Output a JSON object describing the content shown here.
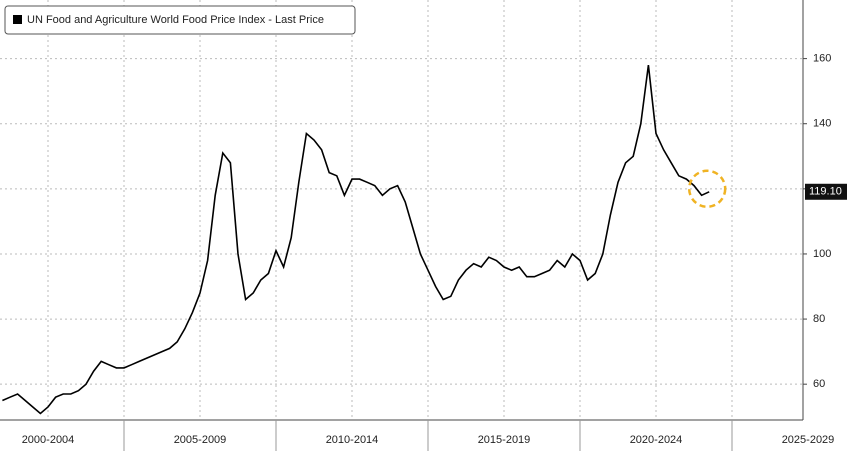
{
  "chart_data": {
    "type": "line",
    "legend": "UN Food and Agriculture World Food Price Index - Last Price",
    "periods": [
      "2000-2004",
      "2005-2009",
      "2010-2014",
      "2015-2019",
      "2020-2024",
      "2025-2029"
    ],
    "series": [
      {
        "name": "UN Food and Agriculture World Food Price Index - Last Price",
        "color": "#000000",
        "values": [
          55,
          56,
          57,
          55,
          53,
          51,
          53,
          56,
          57,
          57,
          58,
          60,
          64,
          67,
          66,
          65,
          65,
          66,
          67,
          68,
          69,
          70,
          71,
          73,
          77,
          82,
          88,
          98,
          118,
          131,
          128,
          100,
          86,
          88,
          92,
          94,
          101,
          96,
          105,
          122,
          137,
          135,
          132,
          125,
          124,
          118,
          123,
          123,
          122,
          121,
          118,
          120,
          121,
          116,
          108,
          100,
          95,
          90,
          86,
          87,
          92,
          95,
          97,
          96,
          99,
          98,
          96,
          95,
          96,
          93,
          93,
          94,
          95,
          98,
          96,
          100,
          98,
          92,
          94,
          100,
          112,
          122,
          128,
          130,
          140,
          158,
          137,
          132,
          128,
          124,
          123,
          121,
          118,
          119.1
        ]
      }
    ],
    "last_label": "119.10",
    "highlight_color": "#f0b323",
    "ylim": [
      49,
      178
    ],
    "yticks": [
      60,
      80,
      100,
      120,
      140,
      160
    ],
    "grid": true
  }
}
